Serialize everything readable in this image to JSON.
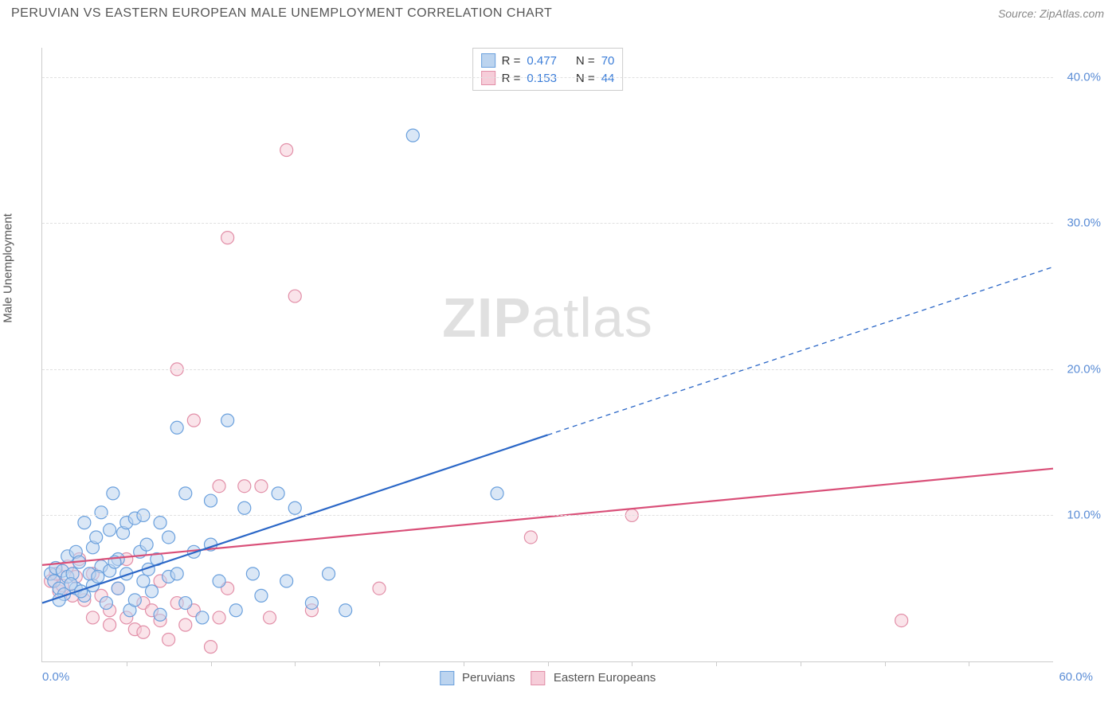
{
  "header": {
    "title": "PERUVIAN VS EASTERN EUROPEAN MALE UNEMPLOYMENT CORRELATION CHART",
    "source_prefix": "Source: ",
    "source_name": "ZipAtlas.com"
  },
  "ylabel": "Male Unemployment",
  "watermark": {
    "left": "ZIP",
    "right": "atlas"
  },
  "axes": {
    "xmin": 0,
    "xmax": 60,
    "ymin": 0,
    "ymax": 42,
    "xmin_label": "0.0%",
    "xmax_label": "60.0%",
    "yticks": [
      {
        "v": 10,
        "label": "10.0%"
      },
      {
        "v": 20,
        "label": "20.0%"
      },
      {
        "v": 30,
        "label": "30.0%"
      },
      {
        "v": 40,
        "label": "40.0%"
      }
    ],
    "xtick_positions": [
      5,
      10,
      15,
      20,
      25,
      30,
      35,
      40,
      45,
      50,
      55
    ]
  },
  "colors": {
    "series_a_fill": "#bcd4ef",
    "series_a_stroke": "#6aa0dd",
    "series_a_line": "#2b67c7",
    "series_b_fill": "#f6cdd9",
    "series_b_stroke": "#e28fa8",
    "series_b_line": "#d94f78",
    "grid": "#e0e0e0",
    "axis": "#cccccc",
    "tick_text": "#5b8dd6",
    "title_text": "#555555",
    "source_text": "#888888",
    "value_text": "#3b7dd8"
  },
  "marker": {
    "radius": 8,
    "stroke_width": 1.2,
    "fill_opacity": 0.55
  },
  "legend_top": {
    "rows": [
      {
        "series": "a",
        "r_label": "R =",
        "r_value": "0.477",
        "n_label": "N =",
        "n_value": "70"
      },
      {
        "series": "b",
        "r_label": "R =",
        "r_value": "0.153",
        "n_label": "N =",
        "n_value": "44"
      }
    ]
  },
  "legend_bottom": {
    "items": [
      {
        "series": "a",
        "label": "Peruvians"
      },
      {
        "series": "b",
        "label": "Eastern Europeans"
      }
    ]
  },
  "trend_lines": {
    "a": {
      "x1": 0,
      "y1": 4.0,
      "x2": 60,
      "y2": 27.0,
      "solid_until_x": 30,
      "width": 2.2,
      "dash": "6,5"
    },
    "b": {
      "x1": 0,
      "y1": 6.6,
      "x2": 60,
      "y2": 13.2,
      "solid_until_x": 60,
      "width": 2.2
    }
  },
  "series": {
    "a": [
      [
        0.5,
        6.0
      ],
      [
        0.7,
        5.5
      ],
      [
        0.8,
        6.4
      ],
      [
        1.0,
        5.0
      ],
      [
        1.2,
        6.2
      ],
      [
        1.3,
        4.6
      ],
      [
        1.5,
        5.8
      ],
      [
        1.5,
        7.2
      ],
      [
        1.8,
        6.0
      ],
      [
        2.0,
        5.0
      ],
      [
        2.0,
        7.5
      ],
      [
        2.2,
        6.8
      ],
      [
        2.5,
        4.5
      ],
      [
        2.5,
        9.5
      ],
      [
        2.8,
        6.0
      ],
      [
        3.0,
        7.8
      ],
      [
        3.0,
        5.2
      ],
      [
        3.2,
        8.5
      ],
      [
        3.5,
        6.5
      ],
      [
        3.5,
        10.2
      ],
      [
        3.8,
        4.0
      ],
      [
        4.0,
        9.0
      ],
      [
        4.0,
        6.2
      ],
      [
        4.2,
        11.5
      ],
      [
        4.5,
        7.0
      ],
      [
        4.5,
        5.0
      ],
      [
        4.8,
        8.8
      ],
      [
        5.0,
        9.5
      ],
      [
        5.0,
        6.0
      ],
      [
        5.2,
        3.5
      ],
      [
        5.5,
        9.8
      ],
      [
        5.5,
        4.2
      ],
      [
        5.8,
        7.5
      ],
      [
        6.0,
        10.0
      ],
      [
        6.0,
        5.5
      ],
      [
        6.2,
        8.0
      ],
      [
        6.5,
        4.8
      ],
      [
        6.8,
        7.0
      ],
      [
        7.0,
        9.5
      ],
      [
        7.0,
        3.2
      ],
      [
        7.5,
        5.8
      ],
      [
        7.5,
        8.5
      ],
      [
        8.0,
        16.0
      ],
      [
        8.0,
        6.0
      ],
      [
        8.5,
        11.5
      ],
      [
        8.5,
        4.0
      ],
      [
        9.0,
        7.5
      ],
      [
        9.5,
        3.0
      ],
      [
        10.0,
        8.0
      ],
      [
        10.0,
        11.0
      ],
      [
        10.5,
        5.5
      ],
      [
        11.0,
        16.5
      ],
      [
        11.5,
        3.5
      ],
      [
        12.0,
        10.5
      ],
      [
        12.5,
        6.0
      ],
      [
        13.0,
        4.5
      ],
      [
        14.0,
        11.5
      ],
      [
        14.5,
        5.5
      ],
      [
        15.0,
        10.5
      ],
      [
        16.0,
        4.0
      ],
      [
        17.0,
        6.0
      ],
      [
        18.0,
        3.5
      ],
      [
        22.0,
        36.0
      ],
      [
        27.0,
        11.5
      ],
      [
        1.0,
        4.2
      ],
      [
        1.7,
        5.3
      ],
      [
        2.3,
        4.8
      ],
      [
        3.3,
        5.8
      ],
      [
        4.3,
        6.8
      ],
      [
        6.3,
        6.3
      ]
    ],
    "b": [
      [
        0.5,
        5.5
      ],
      [
        0.8,
        6.0
      ],
      [
        1.0,
        4.8
      ],
      [
        1.2,
        5.2
      ],
      [
        1.5,
        6.5
      ],
      [
        1.8,
        4.5
      ],
      [
        2.0,
        5.8
      ],
      [
        2.2,
        7.0
      ],
      [
        2.5,
        4.2
      ],
      [
        3.0,
        3.0
      ],
      [
        3.0,
        6.0
      ],
      [
        3.5,
        4.5
      ],
      [
        4.0,
        2.5
      ],
      [
        4.5,
        5.0
      ],
      [
        5.0,
        3.0
      ],
      [
        5.0,
        7.0
      ],
      [
        5.5,
        2.2
      ],
      [
        6.0,
        4.0
      ],
      [
        6.5,
        3.5
      ],
      [
        7.0,
        2.8
      ],
      [
        7.0,
        5.5
      ],
      [
        7.5,
        1.5
      ],
      [
        8.0,
        20.0
      ],
      [
        8.0,
        4.0
      ],
      [
        8.5,
        2.5
      ],
      [
        9.0,
        3.5
      ],
      [
        9.0,
        16.5
      ],
      [
        10.0,
        1.0
      ],
      [
        10.5,
        3.0
      ],
      [
        10.5,
        12.0
      ],
      [
        11.0,
        5.0
      ],
      [
        11.0,
        29.0
      ],
      [
        12.0,
        12.0
      ],
      [
        13.0,
        12.0
      ],
      [
        13.5,
        3.0
      ],
      [
        14.5,
        35.0
      ],
      [
        15.0,
        25.0
      ],
      [
        16.0,
        3.5
      ],
      [
        20.0,
        5.0
      ],
      [
        29.0,
        8.5
      ],
      [
        35.0,
        10.0
      ],
      [
        51.0,
        2.8
      ],
      [
        6.0,
        2.0
      ],
      [
        4.0,
        3.5
      ]
    ]
  }
}
